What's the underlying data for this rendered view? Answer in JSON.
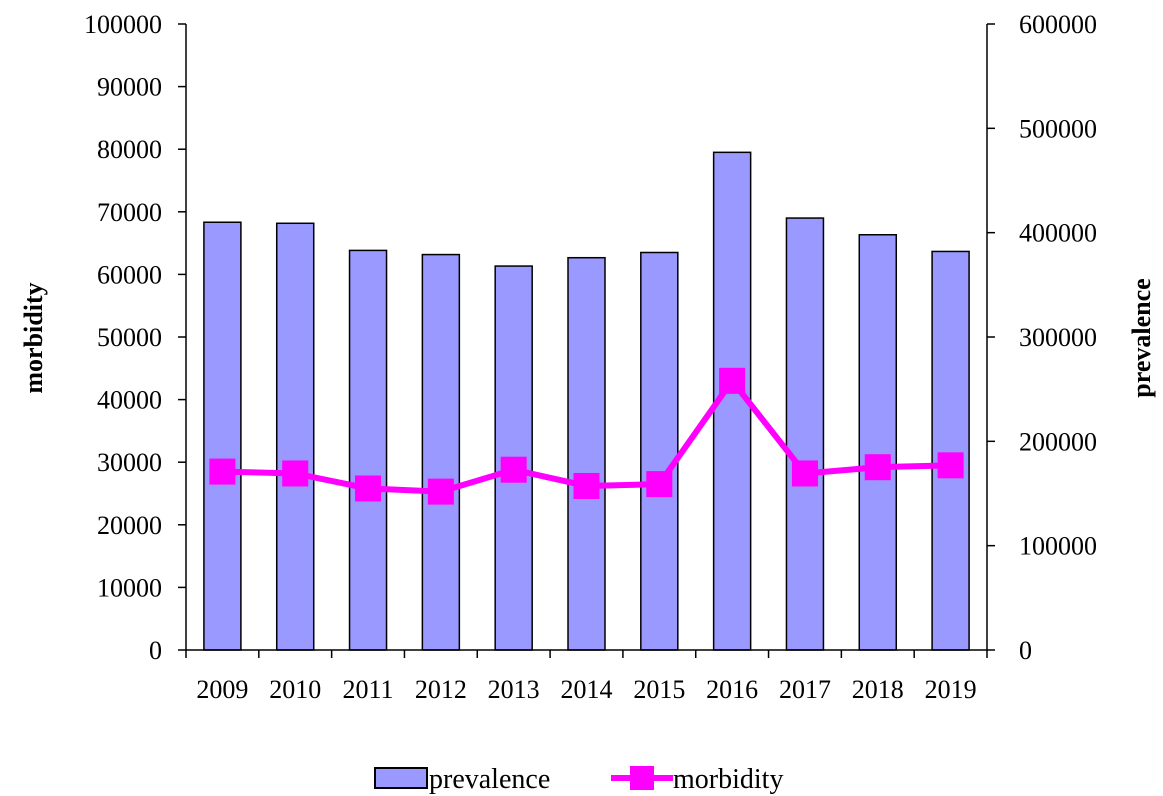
{
  "chart_data": {
    "type": "bar",
    "categories": [
      "2009",
      "2010",
      "2011",
      "2012",
      "2013",
      "2014",
      "2015",
      "2016",
      "2017",
      "2018",
      "2019"
    ],
    "series": [
      {
        "name": "prevalence",
        "type": "bar",
        "axis": "right",
        "color": "#9999ff",
        "values": [
          410000,
          409000,
          383000,
          379000,
          368000,
          376000,
          381000,
          477000,
          414000,
          398000,
          382000
        ]
      },
      {
        "name": "morbidity",
        "type": "line",
        "axis": "left",
        "color": "#ff00ff",
        "values": [
          28500,
          28200,
          25800,
          25300,
          28800,
          26200,
          26500,
          43000,
          28200,
          29200,
          29500
        ]
      }
    ],
    "y_left": {
      "label": "morbidity",
      "lim": [
        0,
        100000
      ],
      "ticks": [
        "0",
        "10000",
        "20000",
        "30000",
        "40000",
        "50000",
        "60000",
        "70000",
        "80000",
        "90000",
        "100000"
      ]
    },
    "y_right": {
      "label": "prevalence",
      "lim": [
        0,
        600000
      ],
      "ticks": [
        "0",
        "100000",
        "200000",
        "300000",
        "400000",
        "500000",
        "600000"
      ]
    },
    "legend": {
      "position": "bottom",
      "items": [
        "prevalence",
        "morbidity"
      ]
    },
    "grid": false,
    "title": ""
  }
}
